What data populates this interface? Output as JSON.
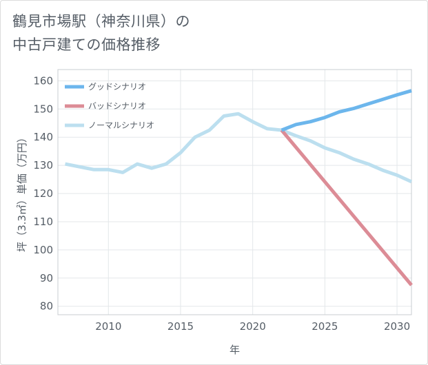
{
  "title_line1": "鶴見市場駅（神奈川県）の",
  "title_line2": "中古戸建ての価格推移",
  "chart_data": {
    "type": "line",
    "xlabel": "年",
    "ylabel": "坪（3.3㎡）単価（万円）",
    "xlim": [
      2006.5,
      2031
    ],
    "ylim": [
      77,
      164
    ],
    "xticks": [
      2010,
      2015,
      2020,
      2025,
      2030
    ],
    "yticks": [
      80,
      90,
      100,
      110,
      120,
      130,
      140,
      150,
      160
    ],
    "grid": true,
    "legend_position": "top-left",
    "series": [
      {
        "name": "グッドシナリオ",
        "color": "#6cb6ec",
        "x": [
          2022,
          2023,
          2024,
          2025,
          2026,
          2027,
          2028,
          2029,
          2030,
          2031
        ],
        "values": [
          142.5,
          144.5,
          145.5,
          147,
          149,
          150.2,
          151.8,
          153.4,
          155,
          156.5
        ]
      },
      {
        "name": "バッドシナリオ",
        "color": "#dc8c96",
        "x": [
          2022,
          2031
        ],
        "values": [
          142.5,
          87.5
        ]
      },
      {
        "name": "ノーマルシナリオ",
        "color": "#bcdfef",
        "x": [
          2007,
          2008,
          2009,
          2010,
          2011,
          2012,
          2013,
          2014,
          2015,
          2016,
          2017,
          2018,
          2019,
          2020,
          2021,
          2022,
          2023,
          2024,
          2025,
          2026,
          2027,
          2028,
          2029,
          2030,
          2031
        ],
        "values": [
          130.5,
          129.5,
          128.5,
          128.5,
          127.5,
          130.5,
          129,
          130.5,
          134.5,
          140,
          142.5,
          147.5,
          148.3,
          145.5,
          143,
          142.5,
          140.5,
          138.7,
          136.2,
          134.5,
          132.2,
          130.5,
          128.3,
          126.5,
          124.2
        ]
      }
    ]
  }
}
